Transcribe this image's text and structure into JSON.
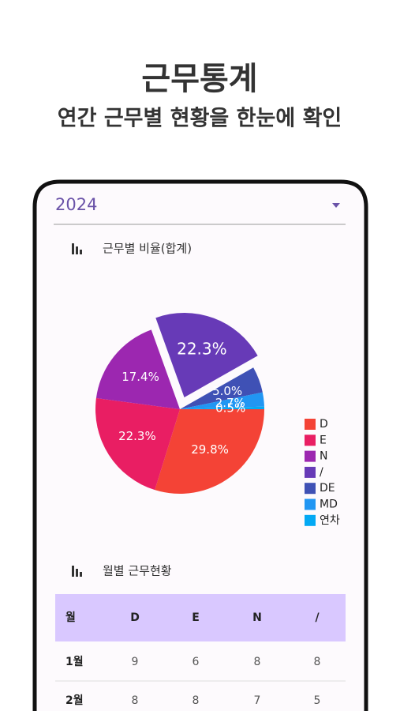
{
  "header": {
    "title": "근무통계",
    "subtitle": "연간 근무별 현황을 한눈에 확인"
  },
  "year_select": "2024",
  "sections": [
    "근무별 비율(합계)",
    "월별 근무현황"
  ],
  "chart_data": {
    "type": "pie",
    "categories": [
      "D",
      "E",
      "N",
      "/",
      "DE",
      "MD",
      "연차"
    ],
    "values": [
      29.8,
      22.3,
      17.4,
      22.3,
      5.0,
      2.7,
      0.5
    ],
    "value_labels": [
      "29.8%",
      "22.3%",
      "17.4%",
      "22.3%",
      "5.0%",
      "2.7%",
      "0.5%"
    ],
    "colors": [
      "#f44336",
      "#e91e63",
      "#9c27b0",
      "#673ab7",
      "#3f51b5",
      "#2196f3",
      "#03a9f4"
    ],
    "explode": [
      false,
      false,
      false,
      true,
      false,
      false,
      false
    ],
    "legend": "right"
  },
  "table": {
    "columns": [
      "월",
      "D",
      "E",
      "N",
      "/"
    ],
    "rows": [
      [
        "1월",
        9,
        6,
        8,
        8
      ],
      [
        "2월",
        8,
        8,
        7,
        5
      ]
    ]
  }
}
